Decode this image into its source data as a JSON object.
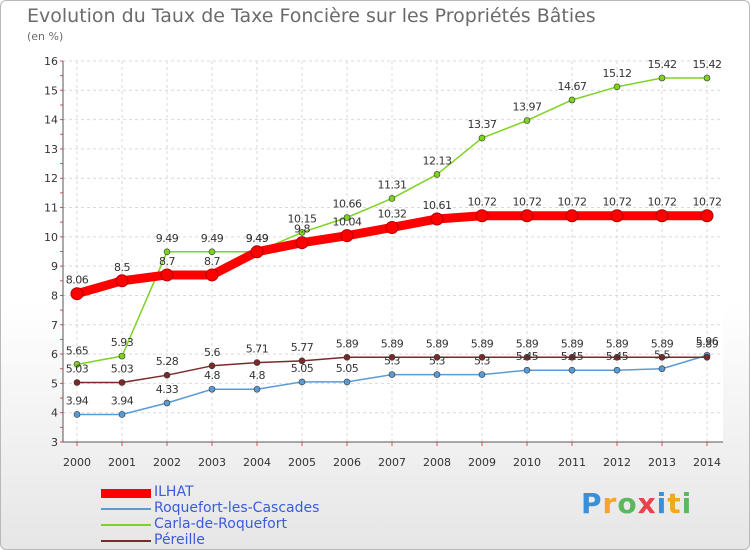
{
  "title": "Evolution du Taux de Taxe Foncière sur les Propriétés Bâties",
  "subtitle": "(en %)",
  "logo": {
    "letters": [
      "P",
      "r",
      "o",
      "x",
      "i",
      "t",
      "i"
    ],
    "colors": [
      "#3a8fd9",
      "#f5a623",
      "#5cb85c",
      "#e8424a",
      "#3a8fd9",
      "#f5a623",
      "#5cb85c"
    ]
  },
  "chart_data": {
    "type": "line",
    "x": [
      "2000",
      "2001",
      "2002",
      "2003",
      "2004",
      "2005",
      "2006",
      "2007",
      "2008",
      "2009",
      "2010",
      "2011",
      "2012",
      "2013",
      "2014"
    ],
    "ylim": [
      3,
      16
    ],
    "yticks": [
      "3",
      "4",
      "5",
      "6",
      "7",
      "8",
      "9",
      "10",
      "11",
      "12",
      "13",
      "14",
      "15",
      "16"
    ],
    "grid": true,
    "legend_position": "bottom-left",
    "series": [
      {
        "name": "ILHAT",
        "color": "#ff0000",
        "values": [
          8.06,
          8.5,
          8.7,
          8.7,
          9.49,
          9.8,
          10.04,
          10.32,
          10.61,
          10.72,
          10.72,
          10.72,
          10.72,
          10.72,
          10.72
        ],
        "labels": [
          "8.06",
          "8.5",
          "8.7",
          "8.7",
          "9.49",
          "9.8",
          "10.04",
          "10.32",
          "10.61",
          "10.72",
          "10.72",
          "10.72",
          "10.72",
          "10.72",
          "10.72"
        ]
      },
      {
        "name": "Roquefort-les-Cascades",
        "color": "#5b9bd5",
        "values": [
          3.94,
          3.94,
          4.33,
          4.8,
          4.8,
          5.05,
          5.05,
          5.3,
          5.3,
          5.3,
          5.45,
          5.45,
          5.45,
          5.5,
          5.96
        ],
        "labels": [
          "3.94",
          "3.94",
          "4.33",
          "4.8",
          "4.8",
          "5.05",
          "5.05",
          "5.3",
          "5.3",
          "5.3",
          "5.45",
          "5.45",
          "5.45",
          "5.5",
          "5.96"
        ]
      },
      {
        "name": "Carla-de-Roquefort",
        "color": "#7ed321",
        "values": [
          5.65,
          5.93,
          9.49,
          9.49,
          9.49,
          10.15,
          10.66,
          11.31,
          12.13,
          13.37,
          13.97,
          14.67,
          15.12,
          15.42,
          15.42
        ],
        "labels": [
          "5.65",
          "5.93",
          "9.49",
          "9.49",
          "9.49",
          "10.15",
          "10.66",
          "11.31",
          "12.13",
          "13.37",
          "13.97",
          "14.67",
          "15.12",
          "15.42",
          "15.42"
        ]
      },
      {
        "name": "Péreille",
        "color": "#7b2a2a",
        "values": [
          5.03,
          5.03,
          5.28,
          5.6,
          5.71,
          5.77,
          5.89,
          5.89,
          5.89,
          5.89,
          5.89,
          5.89,
          5.89,
          5.89,
          5.89
        ],
        "labels": [
          "5.03",
          "5.03",
          "5.28",
          "5.6",
          "5.71",
          "5.77",
          "5.89",
          "5.89",
          "5.89",
          "5.89",
          "5.89",
          "5.89",
          "5.89",
          "5.89",
          "5.89"
        ]
      }
    ]
  }
}
